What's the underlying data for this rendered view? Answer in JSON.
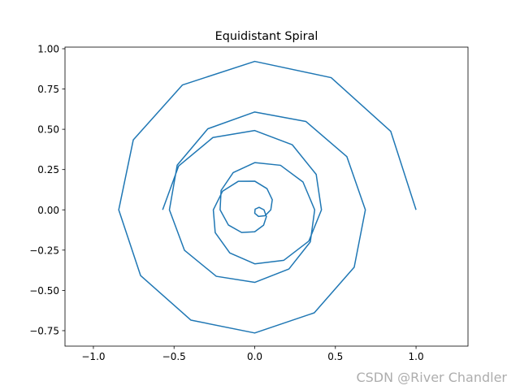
{
  "chart_data": {
    "type": "line",
    "title": "Equidistant Spiral",
    "xlim": [
      -1.176,
      1.322
    ],
    "ylim": [
      -0.846,
      1.01
    ],
    "xticks": [
      {
        "value": -1.0,
        "label": "−1.0"
      },
      {
        "value": -0.5,
        "label": "−0.5"
      },
      {
        "value": 0,
        "label": "0.0"
      },
      0.5,
      {
        "value": 1.0,
        "label": "1.0"
      }
    ],
    "yticks": [
      {
        "value": -0.75,
        "label": "−0.75"
      },
      {
        "value": -0.5,
        "label": "−0.50"
      },
      {
        "value": -0.25,
        "label": "−0.25"
      },
      {
        "value": 0,
        "label": "0.00"
      },
      0.25,
      {
        "value": 0.5,
        "label": "0.50"
      },
      0.75,
      {
        "value": 1.0,
        "label": "1.00"
      }
    ],
    "grid": false,
    "series": [
      {
        "color": "#1f77b4",
        "x": [
          1,
          0.8433,
          0.4738,
          0,
          -0.4477,
          -0.7526,
          -0.8429,
          -0.7073,
          -0.3953,
          0,
          0.3691,
          0.6166,
          0.6858,
          0.5713,
          0.3168,
          0,
          -0.2906,
          -0.4805,
          -0.5288,
          -0.4353,
          -0.2382,
          0,
          0.212,
          0.3446,
          0.3717,
          0.2992,
          0.1597,
          0,
          -0.1335,
          -0.2085,
          -0.2146,
          -0.1632,
          -0.0811,
          0,
          0.055,
          0.0725,
          0.0575,
          0.0271,
          0.0026,
          0,
          0.0236,
          0.0636,
          0.0996,
          0.1089,
          0.076,
          0,
          -0.1022,
          -0.1996,
          -0.2566,
          -0.2449,
          -0.1545,
          0,
          0.1807,
          0.3356,
          0.4137,
          0.381,
          0.2331,
          0,
          -0.2592,
          -0.4716,
          -0.5708
        ],
        "values": [
          0,
          0.4869,
          0.8206,
          0.9215,
          0.7753,
          0.4346,
          0,
          -0.4084,
          -0.6847,
          -0.7644,
          -0.6393,
          -0.356,
          0,
          0.3299,
          0.5486,
          0.6073,
          0.5032,
          0.2775,
          0,
          -0.2513,
          -0.4126,
          -0.4502,
          -0.3672,
          -0.199,
          0,
          0.1728,
          0.2765,
          0.2931,
          0.2312,
          0.1204,
          0,
          -0.0942,
          -0.1405,
          -0.1361,
          -0.0952,
          -0.0419,
          0,
          0.0157,
          0.0045,
          -0.021,
          -0.0409,
          -0.0367,
          0,
          0.0629,
          0.1315,
          0.1781,
          0.1769,
          0.1153,
          0,
          -0.1414,
          -0.2676,
          -0.3352,
          -0.313,
          -0.1938,
          0,
          0.22,
          0.4036,
          0.4923,
          0.4489,
          0.2723,
          0
        ]
      }
    ],
    "watermark": "CSDN @River Chandler"
  }
}
